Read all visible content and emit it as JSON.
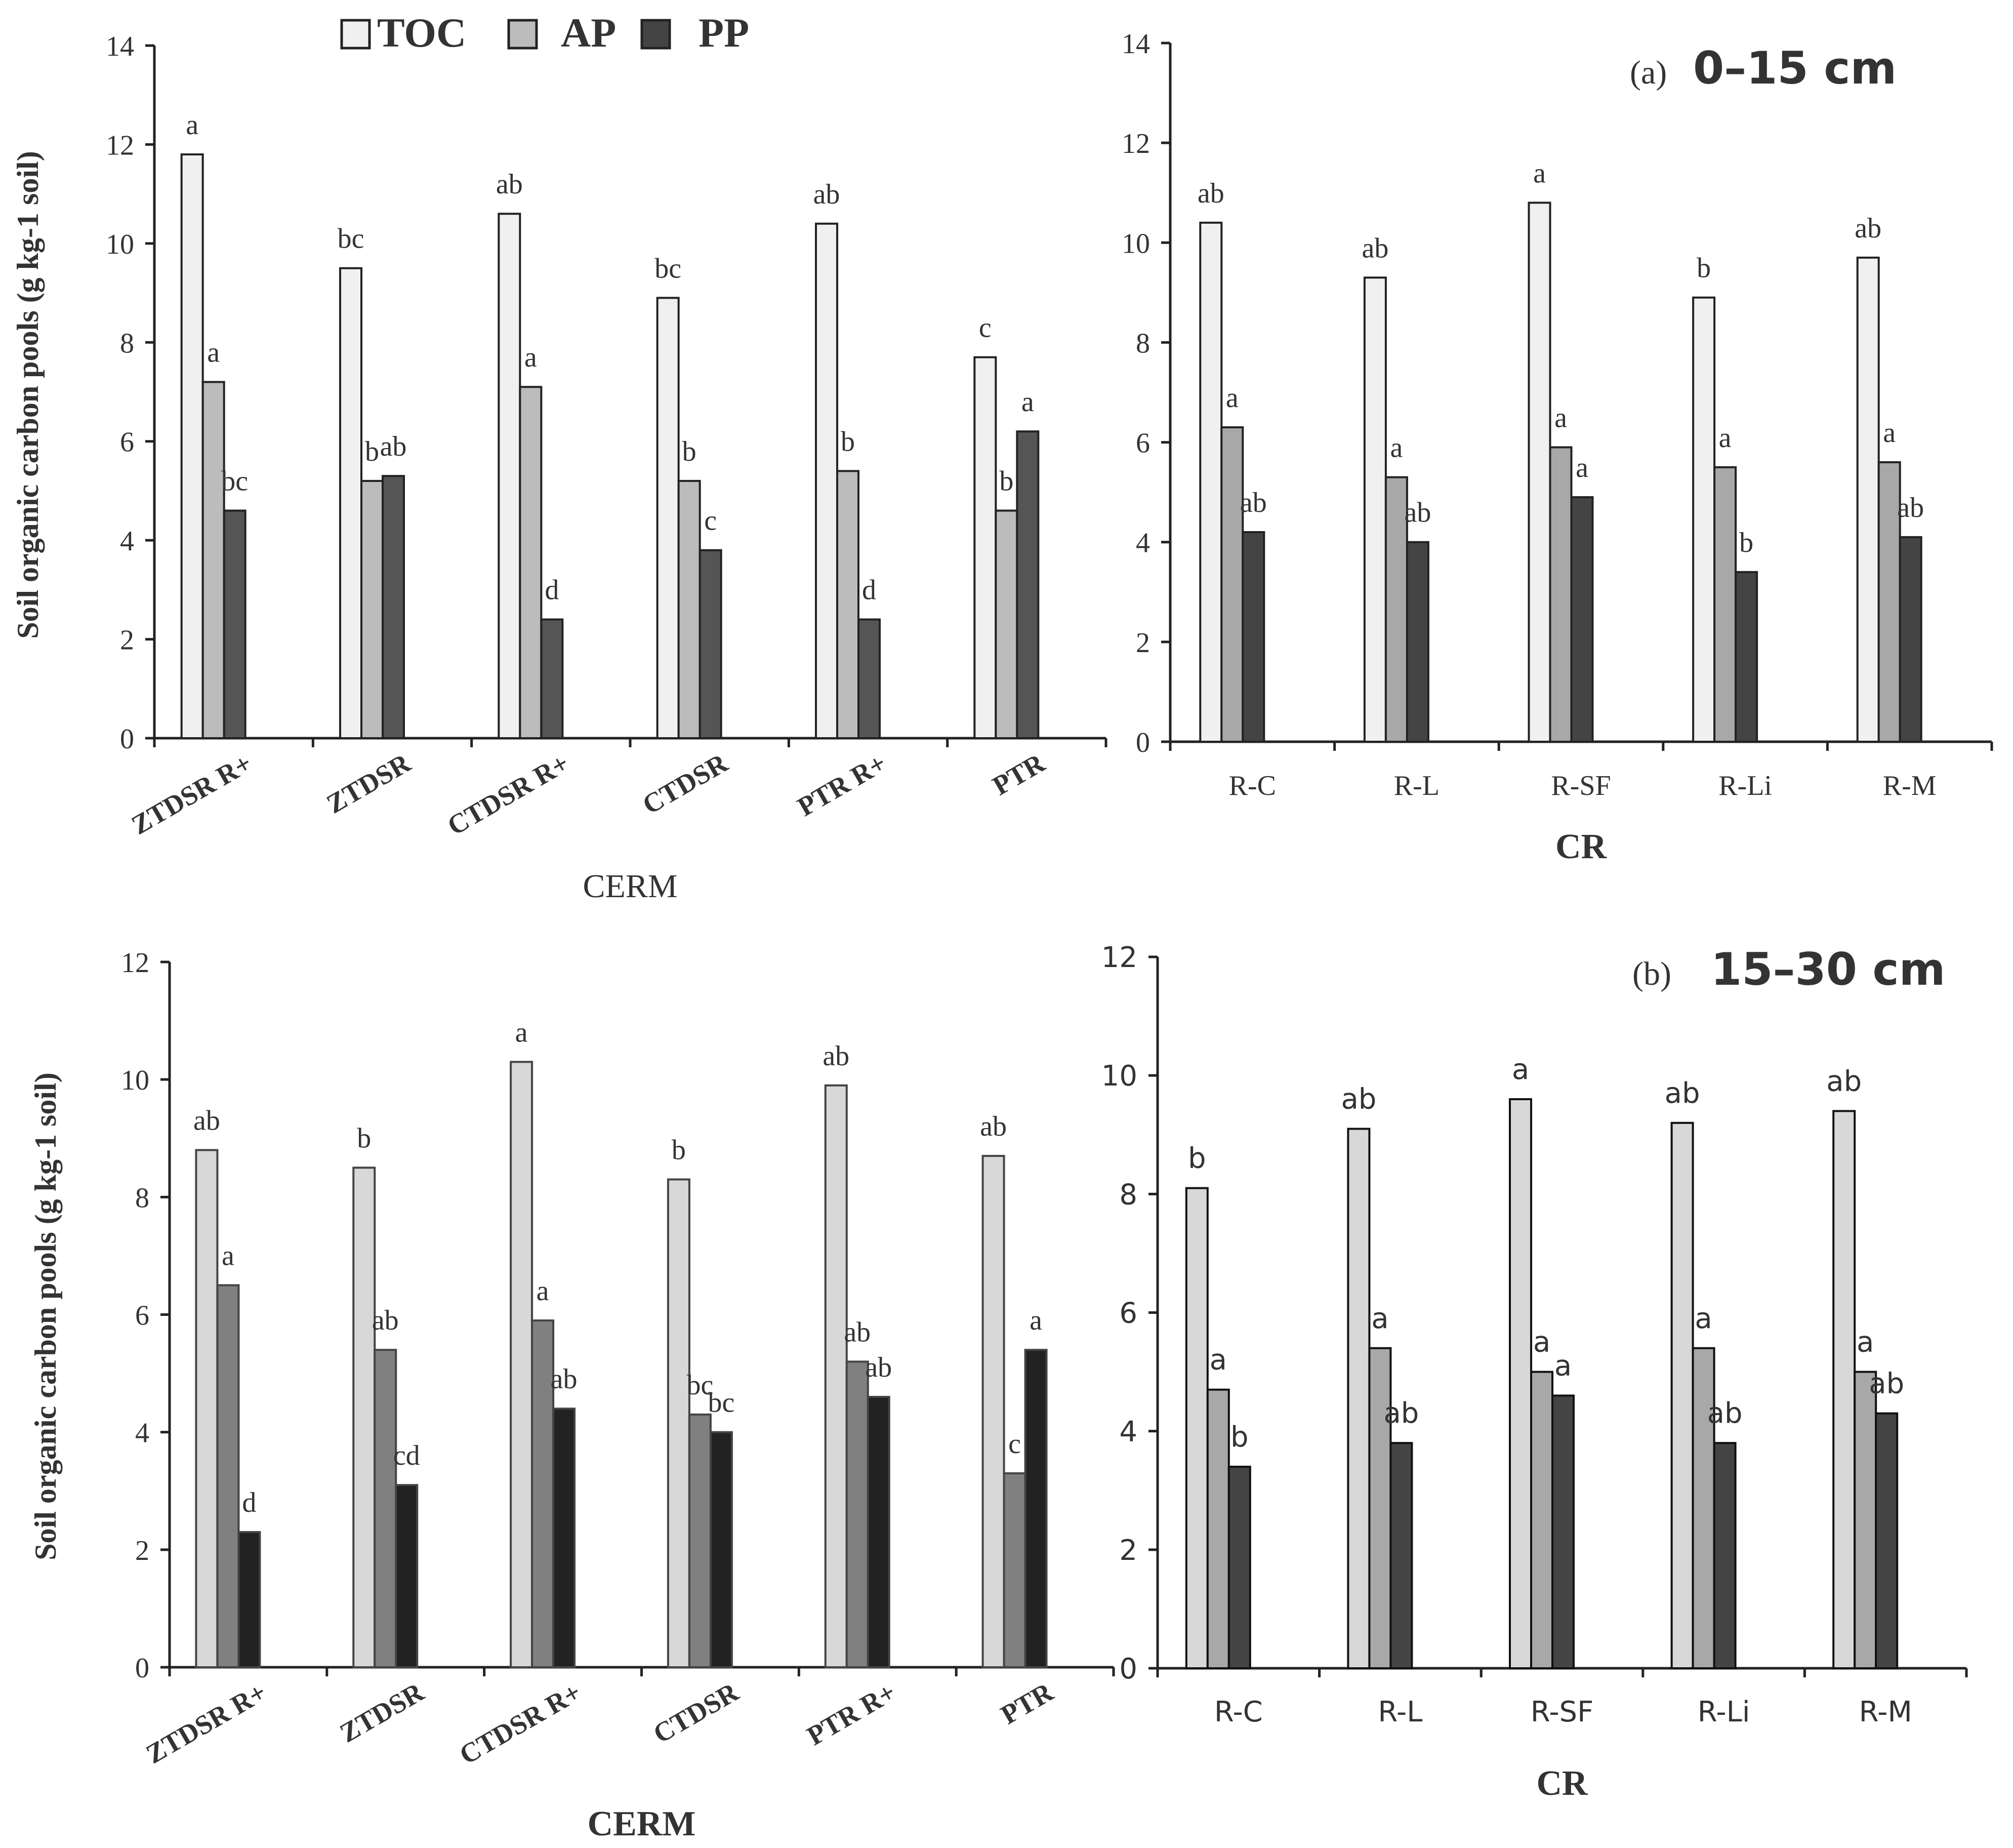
{
  "legend": {
    "items": [
      {
        "label": "TOC",
        "color": "#f0f0f0"
      },
      {
        "label": "AP",
        "color": "#bcbcbc"
      },
      {
        "label": "PP",
        "color": "#444444"
      }
    ]
  },
  "panel_labels": {
    "a": {
      "letter": "(a)",
      "depth": "0–15 cm"
    },
    "b": {
      "letter": "(b)",
      "depth": "15–30 cm"
    }
  },
  "series_names": [
    "TOC",
    "AP",
    "PP"
  ],
  "chart_data": [
    {
      "id": "top-left",
      "type": "bar",
      "title": "",
      "xlabel": "CERM",
      "ylabel": "Soil organic carbon pools (g kg-1 soil)",
      "ylim": [
        0,
        14
      ],
      "yticks": [
        0,
        2,
        4,
        6,
        8,
        10,
        12,
        14
      ],
      "categories": [
        "ZTDSR R+",
        "ZTDSR",
        "CTDSR R+",
        "CTDSR",
        "PTR R+",
        "PTR"
      ],
      "series": [
        {
          "name": "TOC",
          "values": [
            11.8,
            9.5,
            10.6,
            8.9,
            10.4,
            7.7
          ],
          "letters": [
            "a",
            "bc",
            "ab",
            "bc",
            "ab",
            "c"
          ]
        },
        {
          "name": "AP",
          "values": [
            7.2,
            5.2,
            7.1,
            5.2,
            5.4,
            4.6
          ],
          "letters": [
            "a",
            "b",
            "a",
            "b",
            "b",
            "b"
          ]
        },
        {
          "name": "PP",
          "values": [
            4.6,
            5.3,
            2.4,
            3.8,
            2.4,
            6.2
          ],
          "letters": [
            "bc",
            "ab",
            "d",
            "c",
            "d",
            "a"
          ]
        }
      ]
    },
    {
      "id": "top-right",
      "type": "bar",
      "title": "",
      "xlabel": "CR",
      "ylabel": "",
      "ylim": [
        0,
        14
      ],
      "yticks": [
        0,
        2,
        4,
        6,
        8,
        10,
        12,
        14
      ],
      "categories": [
        "R-C",
        "R-L",
        "R-SF",
        "R-Li",
        "R-M"
      ],
      "series": [
        {
          "name": "TOC",
          "values": [
            10.4,
            9.3,
            10.8,
            8.9,
            9.7
          ],
          "letters": [
            "ab",
            "ab",
            "a",
            "b",
            "ab"
          ]
        },
        {
          "name": "AP",
          "values": [
            6.3,
            5.3,
            5.9,
            5.5,
            5.6
          ],
          "letters": [
            "a",
            "a",
            "a",
            "a",
            "a"
          ]
        },
        {
          "name": "PP",
          "values": [
            4.2,
            4.0,
            4.9,
            3.4,
            4.1
          ],
          "letters": [
            "ab",
            "ab",
            "a",
            "b",
            "ab"
          ]
        }
      ]
    },
    {
      "id": "bottom-left",
      "type": "bar",
      "title": "",
      "xlabel": "CERM",
      "ylabel": "Soil organic carbon pools (g kg-1 soil)",
      "ylim": [
        0,
        12
      ],
      "yticks": [
        0,
        2,
        4,
        6,
        8,
        10,
        12
      ],
      "categories": [
        "ZTDSR R+",
        "ZTDSR",
        "CTDSR R+",
        "CTDSR",
        "PTR R+",
        "PTR"
      ],
      "series": [
        {
          "name": "TOC",
          "values": [
            8.8,
            8.5,
            10.3,
            8.3,
            9.9,
            8.7
          ],
          "letters": [
            "ab",
            "b",
            "a",
            "b",
            "ab",
            "ab"
          ]
        },
        {
          "name": "AP",
          "values": [
            6.5,
            5.4,
            5.9,
            4.3,
            5.2,
            3.3
          ],
          "letters": [
            "a",
            "ab",
            "a",
            "bc",
            "ab",
            "c"
          ]
        },
        {
          "name": "PP",
          "values": [
            2.3,
            3.1,
            4.4,
            4.0,
            4.6,
            5.4
          ],
          "letters": [
            "d",
            "cd",
            "ab",
            "bc",
            "ab",
            "a"
          ]
        }
      ]
    },
    {
      "id": "bottom-right",
      "type": "bar",
      "title": "",
      "xlabel": "CR",
      "ylabel": "",
      "ylim": [
        0,
        12
      ],
      "yticks": [
        0,
        2,
        4,
        6,
        8,
        10,
        12
      ],
      "categories": [
        "R-C",
        "R-L",
        "R-SF",
        "R-Li",
        "R-M"
      ],
      "series": [
        {
          "name": "TOC",
          "values": [
            8.1,
            9.1,
            9.6,
            9.2,
            9.4
          ],
          "letters": [
            "b",
            "ab",
            "a",
            "ab",
            "ab"
          ]
        },
        {
          "name": "AP",
          "values": [
            4.7,
            5.4,
            5.0,
            5.4,
            5.0
          ],
          "letters": [
            "a",
            "a",
            "a",
            "a",
            "a"
          ]
        },
        {
          "name": "PP",
          "values": [
            3.4,
            3.8,
            4.6,
            3.8,
            4.3
          ],
          "letters": [
            "b",
            "ab",
            "a",
            "ab",
            "ab"
          ]
        }
      ]
    }
  ]
}
